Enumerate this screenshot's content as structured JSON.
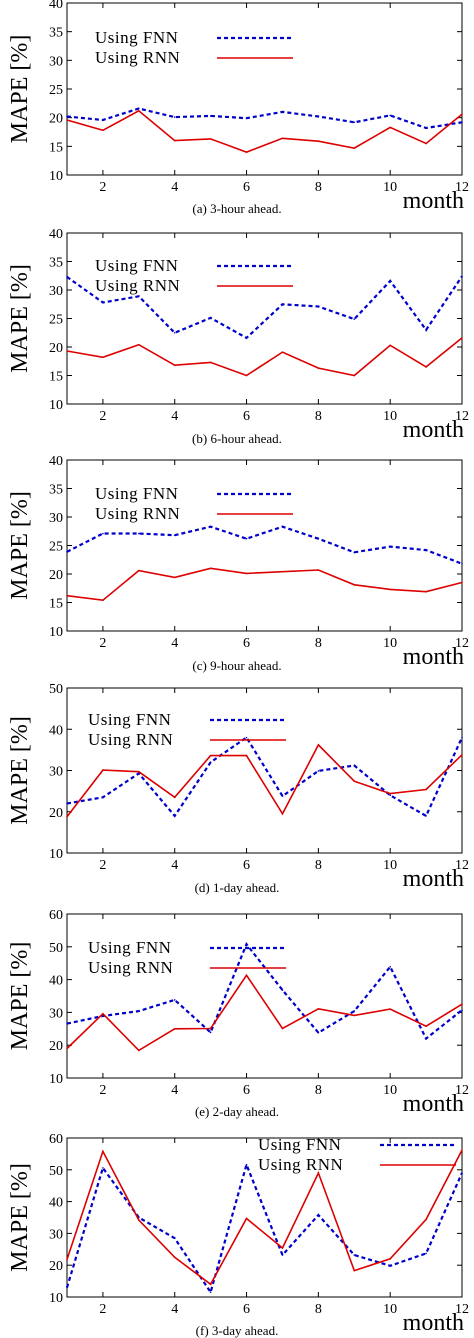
{
  "chart_data": [
    {
      "type": "line",
      "caption": "(a)  3-hour ahead.",
      "xlabel": "month",
      "ylabel": "MAPE [%]",
      "xlim": [
        1,
        12
      ],
      "ylim": [
        10,
        40
      ],
      "xticks": [
        2,
        4,
        6,
        8,
        10,
        12
      ],
      "yticks": [
        10,
        15,
        20,
        25,
        30,
        35,
        40
      ],
      "legend_position": "top-left",
      "x": [
        1,
        2,
        3,
        4,
        5,
        6,
        7,
        8,
        9,
        10,
        11,
        12
      ],
      "series": [
        {
          "name": "Using FNN",
          "color": "#0000cc",
          "style": "dashed",
          "values": [
            20.2,
            19.6,
            21.6,
            20.1,
            20.3,
            19.9,
            21.0,
            20.2,
            19.2,
            20.4,
            18.2,
            19.2
          ]
        },
        {
          "name": "Using RNN",
          "color": "#dd0000",
          "style": "solid",
          "values": [
            19.6,
            17.8,
            21.2,
            16.0,
            16.3,
            14.0,
            16.4,
            15.9,
            14.7,
            18.3,
            15.5,
            20.6
          ]
        }
      ]
    },
    {
      "type": "line",
      "caption": "(b)  6-hour ahead.",
      "xlabel": "month",
      "ylabel": "MAPE [%]",
      "xlim": [
        1,
        12
      ],
      "ylim": [
        10,
        40
      ],
      "xticks": [
        2,
        4,
        6,
        8,
        10,
        12
      ],
      "yticks": [
        10,
        15,
        20,
        25,
        30,
        35,
        40
      ],
      "legend_position": "top-left",
      "x": [
        1,
        2,
        3,
        4,
        5,
        6,
        7,
        8,
        9,
        10,
        11,
        12
      ],
      "series": [
        {
          "name": "Using FNN",
          "color": "#0000cc",
          "style": "dashed",
          "values": [
            32.3,
            27.8,
            28.9,
            22.5,
            25.1,
            21.6,
            27.5,
            27.1,
            24.9,
            31.6,
            23.0,
            32.4
          ]
        },
        {
          "name": "Using RNN",
          "color": "#dd0000",
          "style": "solid",
          "values": [
            19.3,
            18.2,
            20.4,
            16.8,
            17.3,
            15.0,
            19.1,
            16.3,
            15.0,
            20.3,
            16.5,
            21.6
          ]
        }
      ]
    },
    {
      "type": "line",
      "caption": "(c)  9-hour ahead.",
      "xlabel": "month",
      "ylabel": "MAPE [%]",
      "xlim": [
        1,
        12
      ],
      "ylim": [
        10,
        40
      ],
      "xticks": [
        2,
        4,
        6,
        8,
        10,
        12
      ],
      "yticks": [
        10,
        15,
        20,
        25,
        30,
        35,
        40
      ],
      "legend_position": "top-left",
      "x": [
        1,
        2,
        3,
        4,
        5,
        6,
        7,
        8,
        9,
        10,
        11,
        12
      ],
      "series": [
        {
          "name": "Using FNN",
          "color": "#0000cc",
          "style": "dashed",
          "values": [
            23.9,
            27.1,
            27.1,
            26.8,
            28.3,
            26.2,
            28.3,
            26.2,
            23.8,
            24.8,
            24.2,
            21.8
          ]
        },
        {
          "name": "Using RNN",
          "color": "#dd0000",
          "style": "solid",
          "values": [
            16.2,
            15.4,
            20.6,
            19.4,
            21.0,
            20.1,
            20.4,
            20.7,
            18.1,
            17.3,
            16.9,
            18.5
          ]
        }
      ]
    },
    {
      "type": "line",
      "caption": "(d)  1-day ahead.",
      "xlabel": "month",
      "ylabel": "MAPE [%]",
      "xlim": [
        1,
        12
      ],
      "ylim": [
        10,
        50
      ],
      "xticks": [
        2,
        4,
        6,
        8,
        10,
        12
      ],
      "yticks": [
        10,
        20,
        30,
        40,
        50
      ],
      "legend_position": "top-left",
      "x": [
        1,
        2,
        3,
        4,
        5,
        6,
        7,
        8,
        9,
        10,
        11,
        12
      ],
      "series": [
        {
          "name": "Using FNN",
          "color": "#0000cc",
          "style": "dashed",
          "values": [
            22.0,
            23.5,
            29.3,
            19.0,
            32.0,
            38.0,
            23.8,
            29.9,
            31.2,
            24.0,
            19.0,
            38.0
          ]
        },
        {
          "name": "Using RNN",
          "color": "#dd0000",
          "style": "solid",
          "values": [
            18.8,
            30.1,
            29.7,
            23.5,
            33.6,
            33.6,
            19.5,
            36.2,
            27.4,
            24.4,
            25.4,
            33.8
          ]
        }
      ]
    },
    {
      "type": "line",
      "caption": "(e)  2-day ahead.",
      "xlabel": "month",
      "ylabel": "MAPE [%]",
      "xlim": [
        1,
        12
      ],
      "ylim": [
        10,
        60
      ],
      "xticks": [
        2,
        4,
        6,
        8,
        10,
        12
      ],
      "yticks": [
        10,
        20,
        30,
        40,
        50,
        60
      ],
      "legend_position": "top-left",
      "x": [
        1,
        2,
        3,
        4,
        5,
        6,
        7,
        8,
        9,
        10,
        11,
        12
      ],
      "series": [
        {
          "name": "Using FNN",
          "color": "#0000cc",
          "style": "dashed",
          "values": [
            26.6,
            28.9,
            30.4,
            33.8,
            23.9,
            50.8,
            36.8,
            23.8,
            30.4,
            43.9,
            22.0,
            30.7
          ]
        },
        {
          "name": "Using RNN",
          "color": "#dd0000",
          "style": "solid",
          "values": [
            19.0,
            29.6,
            18.4,
            25.0,
            25.1,
            41.3,
            25.1,
            31.1,
            29.1,
            31.0,
            25.8,
            32.5
          ]
        }
      ]
    },
    {
      "type": "line",
      "caption": "(f)  3-day ahead.",
      "xlabel": "month",
      "ylabel": "MAPE [%]",
      "xlim": [
        1,
        12
      ],
      "ylim": [
        10,
        60
      ],
      "xticks": [
        2,
        4,
        6,
        8,
        10,
        12
      ],
      "yticks": [
        10,
        20,
        30,
        40,
        50,
        60
      ],
      "legend_position": "top-right",
      "x": [
        1,
        2,
        3,
        4,
        5,
        6,
        7,
        8,
        9,
        10,
        11,
        12
      ],
      "series": [
        {
          "name": "Using FNN",
          "color": "#0000cc",
          "style": "dashed",
          "values": [
            13.0,
            50.6,
            35.0,
            28.5,
            11.5,
            51.6,
            23.2,
            35.8,
            23.2,
            19.8,
            23.7,
            49.0
          ]
        },
        {
          "name": "Using RNN",
          "color": "#dd0000",
          "style": "solid",
          "values": [
            21.8,
            55.8,
            34.2,
            22.5,
            14.0,
            34.7,
            25.4,
            49.0,
            18.3,
            22.0,
            34.4,
            56.2
          ]
        }
      ]
    }
  ]
}
